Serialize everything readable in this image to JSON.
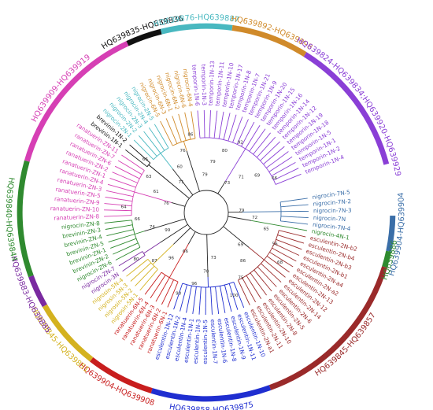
{
  "clades": [
    {
      "label": "HQ639835-HQ639836",
      "color": "#111111"
    },
    {
      "label": "HQ639876-HQ639887",
      "color": "#48b8c0"
    },
    {
      "label": "HQ639892-HQ639898",
      "color": "#d08a2a"
    },
    {
      "label": "HQ639824-HQ639834;HQ639920-HQ639929",
      "color": "#8a3fd6"
    },
    {
      "label": "HQ639904-HQ639904",
      "color": "#3a6ea8"
    },
    {
      "label": "HQ639886",
      "color": "#2f8a2f"
    },
    {
      "label": "HQ639845-HQ639857",
      "color": "#9a2a2a"
    },
    {
      "label": "HQ639858-HQ639875",
      "color": "#1f2ed0"
    },
    {
      "label": "HQ639904-HQ639908",
      "color": "#c81e1e"
    },
    {
      "label": "HQ639845-HQ639851",
      "color": "#d4b21f"
    },
    {
      "label": "HQ639883-HQ639885",
      "color": "#7a2aa0"
    },
    {
      "label": "HQ639840-HQ639844",
      "color": "#2f8a2f"
    },
    {
      "label": "HQ639909-HQ639919",
      "color": "#d63fb4"
    }
  ],
  "leaves": [
    {
      "label": "nigrocin-7N-5",
      "color": "#3a6ea8"
    },
    {
      "label": "nigrocin-7N-2",
      "color": "#3a6ea8"
    },
    {
      "label": "nigrocin-7N-3",
      "color": "#3a6ea8"
    },
    {
      "label": "nigrocin-7N",
      "color": "#3a6ea8"
    },
    {
      "label": "nigrocin-7N-4",
      "color": "#3a6ea8"
    },
    {
      "label": "nigrocin-4N-1",
      "color": "#2f8a2f"
    },
    {
      "label": "esculentin-2N-b2",
      "color": "#9a2a2a"
    },
    {
      "label": "esculentin-2N-b4",
      "color": "#9a2a2a"
    },
    {
      "label": "esculentin-2N-b3",
      "color": "#9a2a2a"
    },
    {
      "label": "esculentin-2N-b1",
      "color": "#9a2a2a"
    },
    {
      "label": "esculentin-2N-a4",
      "color": "#9a2a2a"
    },
    {
      "label": "esculentin-2N-a2",
      "color": "#9a2a2a"
    },
    {
      "label": "esculentin-2N-13",
      "color": "#9a2a2a"
    },
    {
      "label": "esculentin-2N-12",
      "color": "#9a2a2a"
    },
    {
      "label": "esculentin-2N-14",
      "color": "#9a2a2a"
    },
    {
      "label": "esculentin-2N-6",
      "color": "#9a2a2a"
    },
    {
      "label": "esculentin-2N-5",
      "color": "#9a2a2a"
    },
    {
      "label": "esculentin-2N-8",
      "color": "#9a2a2a"
    },
    {
      "label": "esculentin-2N-10",
      "color": "#9a2a2a"
    },
    {
      "label": "esculentin-2N-11",
      "color": "#9a2a2a"
    },
    {
      "label": "esculentin-2N-a1",
      "color": "#9a2a2a"
    },
    {
      "label": "esculentin-1N-10",
      "color": "#1f2ed0"
    },
    {
      "label": "esculentin-1N-11",
      "color": "#1f2ed0"
    },
    {
      "label": "esculentin-1N-9",
      "color": "#1f2ed0"
    },
    {
      "label": "esculentin-1N-8",
      "color": "#1f2ed0"
    },
    {
      "label": "esculentin-1N-6",
      "color": "#1f2ed0"
    },
    {
      "label": "esculentin-1N-7",
      "color": "#1f2ed0"
    },
    {
      "label": "esculentin-1N-5",
      "color": "#1f2ed0"
    },
    {
      "label": "esculentin-1N-3",
      "color": "#1f2ed0"
    },
    {
      "label": "esculentin-1N-1",
      "color": "#1f2ed0"
    },
    {
      "label": "esculentin-1N-4",
      "color": "#1f2ed0"
    },
    {
      "label": "esculentin-1N-2",
      "color": "#1f2ed0"
    },
    {
      "label": "esculentin-1N-12",
      "color": "#1f2ed0"
    },
    {
      "label": "ranatuerin-6N-1",
      "color": "#c81e1e"
    },
    {
      "label": "ranatuerin-6N-2",
      "color": "#c81e1e"
    },
    {
      "label": "ranatuerin-6N-3",
      "color": "#c81e1e"
    },
    {
      "label": "ranatuerin-6N-4",
      "color": "#c81e1e"
    },
    {
      "label": "ranatuerin-6N-5",
      "color": "#c81e1e"
    },
    {
      "label": "nigrosin-5N-1",
      "color": "#d4b21f"
    },
    {
      "label": "nigrosin-5N-2",
      "color": "#d4b21f"
    },
    {
      "label": "nigrosin-5N-3",
      "color": "#d4b21f"
    },
    {
      "label": "nigrosin-5N-4",
      "color": "#d4b21f"
    },
    {
      "label": "nigrocin-3N",
      "color": "#7a2aa0"
    },
    {
      "label": "nigrocin-ZN-7",
      "color": "#7a2aa0"
    },
    {
      "label": "nigrocin-ZN-6",
      "color": "#2f8a2f"
    },
    {
      "label": "brevinin-ZN-2",
      "color": "#2f8a2f"
    },
    {
      "label": "brevinin-ZN-1",
      "color": "#2f8a2f"
    },
    {
      "label": "brevinin-ZN-5",
      "color": "#2f8a2f"
    },
    {
      "label": "brevinin-ZN-4",
      "color": "#2f8a2f"
    },
    {
      "label": "brevinin-ZN-3",
      "color": "#2f8a2f"
    },
    {
      "label": "nigrocin-ZN-8",
      "color": "#2f8a2f"
    },
    {
      "label": "ranatuerin-ZN-8",
      "color": "#d63fb4"
    },
    {
      "label": "ranatuerin-ZN-10",
      "color": "#d63fb4"
    },
    {
      "label": "ranatuerin-ZN-9",
      "color": "#d63fb4"
    },
    {
      "label": "ranatuerin-ZN-5",
      "color": "#d63fb4"
    },
    {
      "label": "ranatuerin-ZN-3",
      "color": "#d63fb4"
    },
    {
      "label": "ranatuerin-ZN-4",
      "color": "#d63fb4"
    },
    {
      "label": "ranatuerin-ZN-1",
      "color": "#d63fb4"
    },
    {
      "label": "ranatuerin-ZN-2",
      "color": "#d63fb4"
    },
    {
      "label": "ranatuerin-ZN-6",
      "color": "#d63fb4"
    },
    {
      "label": "ranatuerin-ZN-7",
      "color": "#d63fb4"
    },
    {
      "label": "ranatuerin-ZN-11",
      "color": "#d63fb4"
    },
    {
      "label": "brevinin-1N-1",
      "color": "#111111"
    },
    {
      "label": "brevinin-1N-2",
      "color": "#111111"
    },
    {
      "label": "nigrocin-2N-1",
      "color": "#48b8c0"
    },
    {
      "label": "nigrocin-2N-2",
      "color": "#48b8c0"
    },
    {
      "label": "nigrocin-2N-3",
      "color": "#48b8c0"
    },
    {
      "label": "nigrocin-2N-4",
      "color": "#48b8c0"
    },
    {
      "label": "nigrocin-2N-5",
      "color": "#48b8c0"
    },
    {
      "label": "nigrocin-6N-5",
      "color": "#d08a2a"
    },
    {
      "label": "nigrocin-6N-3",
      "color": "#d08a2a"
    },
    {
      "label": "nigrocin-6N-1",
      "color": "#d08a2a"
    },
    {
      "label": "nigrocin-6N-2",
      "color": "#d08a2a"
    },
    {
      "label": "nigrocin-6N-6",
      "color": "#d08a2a"
    },
    {
      "label": "nigrocin-6N-4",
      "color": "#d08a2a"
    },
    {
      "label": "temporin-1N-6",
      "color": "#8a3fd6"
    },
    {
      "label": "temporin-1N-3",
      "color": "#8a3fd6"
    },
    {
      "label": "temporin-1N-13",
      "color": "#8a3fd6"
    },
    {
      "label": "temporin-1N-11",
      "color": "#8a3fd6"
    },
    {
      "label": "temporin-1N-10",
      "color": "#8a3fd6"
    },
    {
      "label": "temporin-1N-17",
      "color": "#8a3fd6"
    },
    {
      "label": "temporin-1N-8",
      "color": "#8a3fd6"
    },
    {
      "label": "temporin-1N-7",
      "color": "#8a3fd6"
    },
    {
      "label": "temporin-1N-21",
      "color": "#8a3fd6"
    },
    {
      "label": "temporin-1N-9",
      "color": "#8a3fd6"
    },
    {
      "label": "temporin-1N-20",
      "color": "#8a3fd6"
    },
    {
      "label": "temporin-1N-15",
      "color": "#8a3fd6"
    },
    {
      "label": "temporin-1N-16",
      "color": "#8a3fd6"
    },
    {
      "label": "temporin-1N-14",
      "color": "#8a3fd6"
    },
    {
      "label": "temporin-1N-12",
      "color": "#8a3fd6"
    },
    {
      "label": "temporin-1N-19",
      "color": "#8a3fd6"
    },
    {
      "label": "temporin-1N-18",
      "color": "#8a3fd6"
    },
    {
      "label": "temporin-1N-5",
      "color": "#8a3fd6"
    },
    {
      "label": "temporin-1N-1",
      "color": "#8a3fd6"
    },
    {
      "label": "temporin-1N-2",
      "color": "#8a3fd6"
    },
    {
      "label": "temporin-1N-4",
      "color": "#8a3fd6"
    }
  ],
  "bootstrap": [
    "79",
    "72",
    "65",
    "56",
    "68",
    "69",
    "86",
    "75",
    "100",
    "73",
    "70",
    "96",
    "90",
    "66",
    "96",
    "87",
    "80",
    "99",
    "74",
    "66",
    "64",
    "76",
    "61",
    "63",
    "66",
    "71",
    "60",
    "76",
    "86",
    "79",
    "79",
    "80",
    "92",
    "73",
    "71",
    "69",
    "66"
  ]
}
